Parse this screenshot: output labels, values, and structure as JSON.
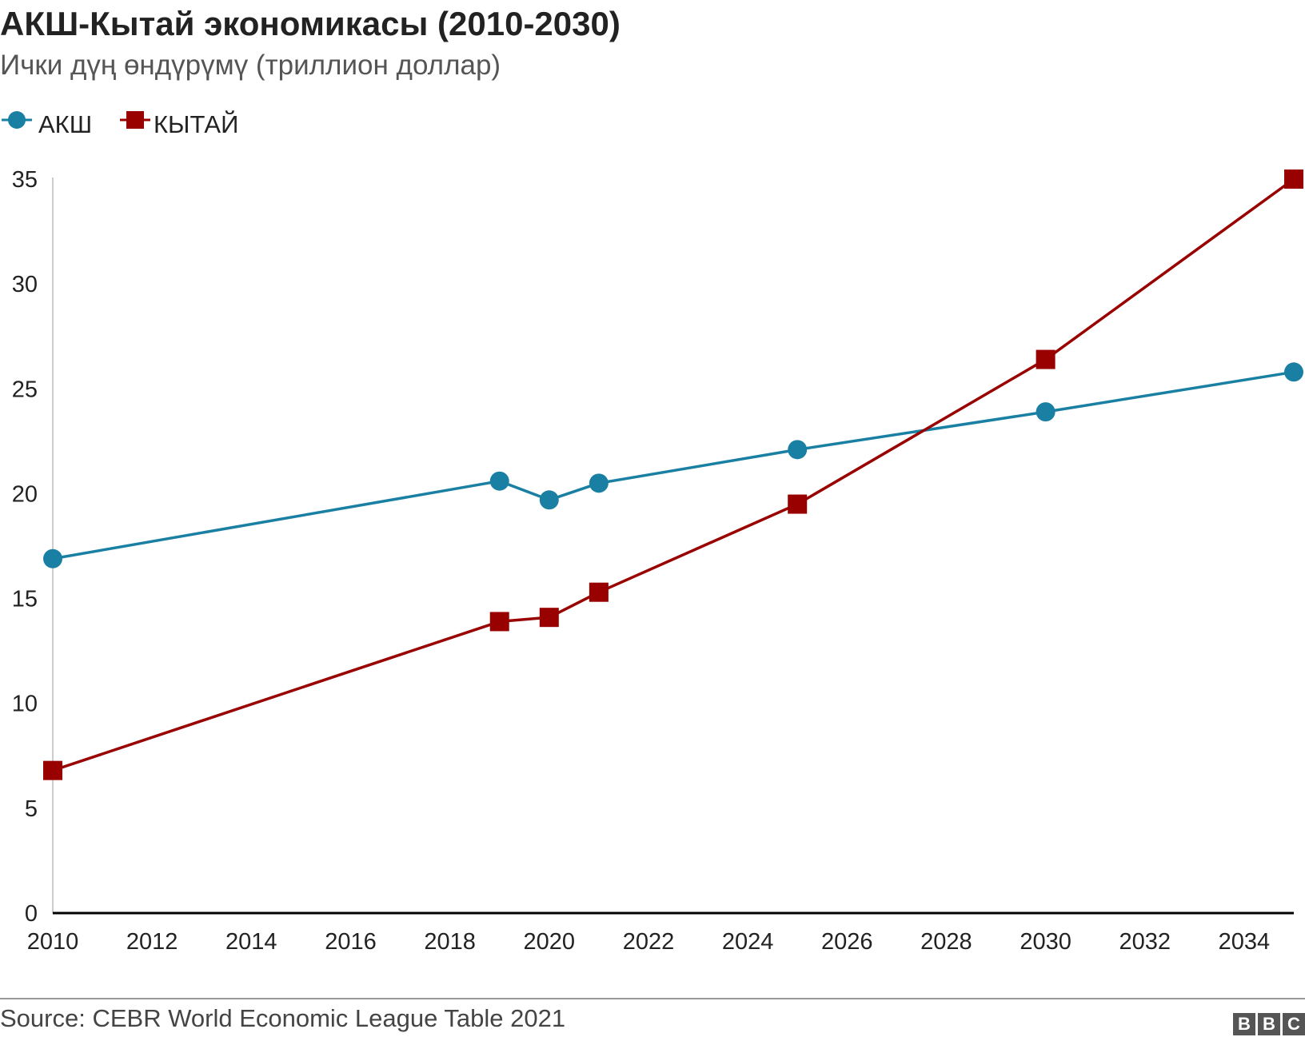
{
  "title": "АКШ-Кытай экономикасы (2010-2030)",
  "subtitle": "Ички дүң өндүрүмү (триллион доллар)",
  "source": "Source: CEBR World Economic League Table 2021",
  "logo": [
    "B",
    "B",
    "C"
  ],
  "colors": {
    "usa": "#1a80a3",
    "china": "#990000",
    "axis": "#000000",
    "gridline": "#cccccc"
  },
  "chart_data": {
    "type": "line",
    "title": "АКШ-Кытай экономикасы (2010-2030)",
    "subtitle": "Ички дүң өндүрүмү (триллион доллар)",
    "xlabel": "",
    "ylabel": "",
    "xlim": [
      2010,
      2035
    ],
    "ylim": [
      0,
      35
    ],
    "xticks": [
      2010,
      2012,
      2014,
      2016,
      2018,
      2020,
      2022,
      2024,
      2026,
      2028,
      2030,
      2032,
      2034
    ],
    "yticks": [
      0,
      5,
      10,
      15,
      20,
      25,
      30,
      35
    ],
    "grid": false,
    "legend": "top-left",
    "series": [
      {
        "name": "АКШ",
        "marker": "circle",
        "x": [
          2010,
          2019,
          2020,
          2021,
          2025,
          2030,
          2035
        ],
        "values": [
          16.9,
          20.6,
          19.7,
          20.5,
          22.1,
          23.9,
          25.8
        ]
      },
      {
        "name": "КЫТАЙ",
        "marker": "square",
        "x": [
          2010,
          2019,
          2020,
          2021,
          2025,
          2030,
          2035
        ],
        "values": [
          6.8,
          13.9,
          14.1,
          15.3,
          19.5,
          26.4,
          35.0
        ]
      }
    ]
  }
}
